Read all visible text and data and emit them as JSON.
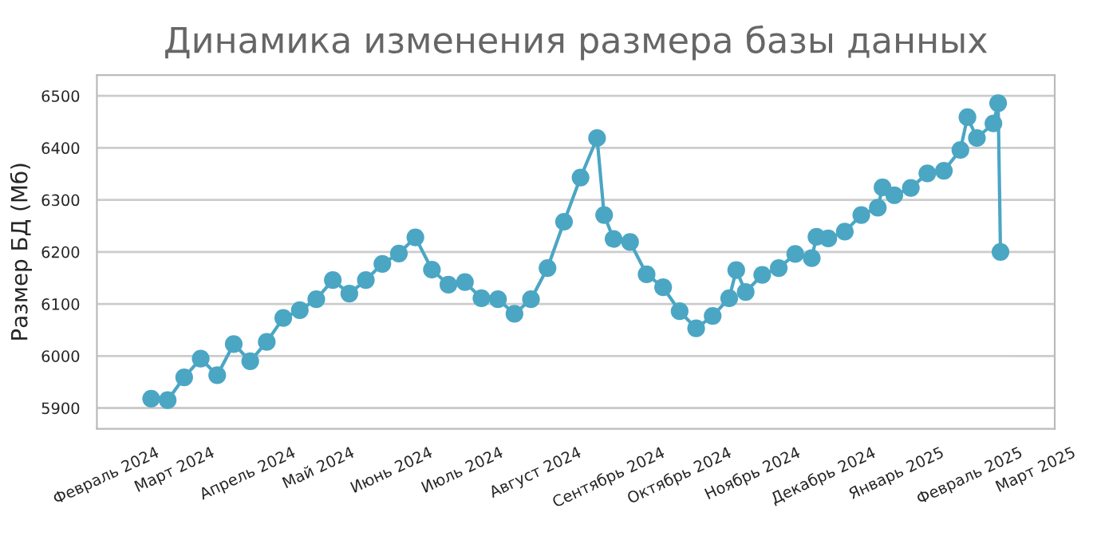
{
  "chart_data": {
    "type": "line",
    "title": "Динамика изменения размера базы данных",
    "ylabel": "Размер БД (Мб)",
    "x": [
      "2024-02-20",
      "2024-02-27",
      "2024-03-05",
      "2024-03-12",
      "2024-03-19",
      "2024-03-26",
      "2024-04-02",
      "2024-04-09",
      "2024-04-16",
      "2024-04-23",
      "2024-04-30",
      "2024-05-07",
      "2024-05-14",
      "2024-05-21",
      "2024-05-28",
      "2024-06-04",
      "2024-06-11",
      "2024-06-18",
      "2024-06-25",
      "2024-07-02",
      "2024-07-09",
      "2024-07-16",
      "2024-07-23",
      "2024-07-30",
      "2024-08-06",
      "2024-08-13",
      "2024-08-20",
      "2024-08-27",
      "2024-08-30",
      "2024-09-03",
      "2024-09-10",
      "2024-09-17",
      "2024-09-24",
      "2024-10-01",
      "2024-10-08",
      "2024-10-15",
      "2024-10-22",
      "2024-10-25",
      "2024-10-29",
      "2024-11-05",
      "2024-11-12",
      "2024-11-19",
      "2024-11-26",
      "2024-11-28",
      "2024-12-03",
      "2024-12-10",
      "2024-12-17",
      "2024-12-24",
      "2024-12-26",
      "2024-12-31",
      "2025-01-07",
      "2025-01-14",
      "2025-01-21",
      "2025-01-28",
      "2025-01-31",
      "2025-02-04",
      "2025-02-11",
      "2025-02-13",
      "2025-02-14"
    ],
    "series": [
      {
        "color": "#4ba6c4",
        "values": [
          5918,
          5915,
          5959,
          5995,
          5963,
          6023,
          5990,
          6027,
          6073,
          6088,
          6109,
          6146,
          6120,
          6146,
          6177,
          6197,
          6228,
          6166,
          6137,
          6142,
          6111,
          6109,
          6081,
          6109,
          6169,
          6258,
          6343,
          6419,
          6271,
          6225,
          6219,
          6157,
          6132,
          6086,
          6053,
          6077,
          6111,
          6165,
          6123,
          6156,
          6169,
          6196,
          6188,
          6229,
          6226,
          6239,
          6271,
          6285,
          6324,
          6309,
          6323,
          6351,
          6356,
          6396,
          6459,
          6419,
          6447,
          6486,
          6200
        ]
      }
    ],
    "xlim": [
      "2024-01-28",
      "2025-03-09"
    ],
    "xticks": [
      {
        "value": "2024-02-01",
        "label": "Февраль 2024"
      },
      {
        "value": "2024-03-01",
        "label": "Март 2024"
      },
      {
        "value": "2024-04-01",
        "label": "Апрель 2024"
      },
      {
        "value": "2024-05-01",
        "label": "Май 2024"
      },
      {
        "value": "2024-06-01",
        "label": "Июнь 2024"
      },
      {
        "value": "2024-07-01",
        "label": "Июль 2024"
      },
      {
        "value": "2024-08-01",
        "label": "Август 2024"
      },
      {
        "value": "2024-09-01",
        "label": "Сентябрь 2024"
      },
      {
        "value": "2024-10-01",
        "label": "Октябрь 2024"
      },
      {
        "value": "2024-11-01",
        "label": "Ноябрь 2024"
      },
      {
        "value": "2024-12-01",
        "label": "Декабрь 2024"
      },
      {
        "value": "2025-01-01",
        "label": "Январь 2025"
      },
      {
        "value": "2025-02-01",
        "label": "Февраль 2025"
      },
      {
        "value": "2025-03-01",
        "label": "Март 2025"
      }
    ],
    "ylim": [
      5860,
      6540
    ],
    "yticks": [
      5900,
      6000,
      6100,
      6200,
      6300,
      6400,
      6500
    ],
    "grid": "y",
    "legend": false,
    "marker": "circle",
    "line_style": "solid"
  }
}
